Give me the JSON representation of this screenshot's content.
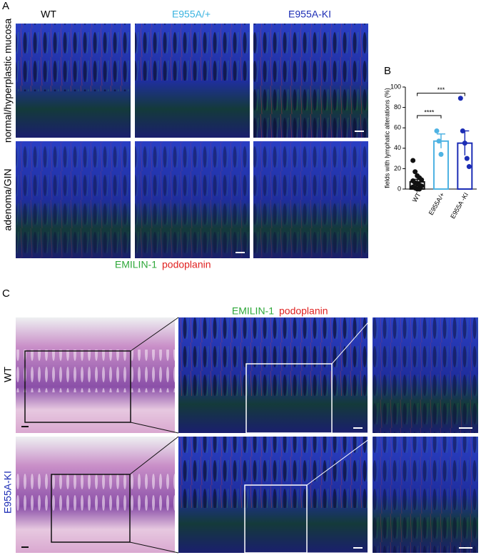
{
  "panel_a": {
    "label": "A",
    "columns": [
      "WT",
      "E955A/+",
      "E955A-KI"
    ],
    "rows": [
      "normal/hyperplastic mucosa",
      "adenoma/GIN"
    ],
    "stain_green": "EMILIN-1",
    "stain_red": "podoplanin"
  },
  "panel_b": {
    "label": "B"
  },
  "panel_c": {
    "label": "C",
    "rows": [
      "WT",
      "E955A-KI"
    ],
    "stain_green": "EMILIN-1",
    "stain_red": "podoplanin"
  },
  "chart_data": {
    "type": "bar",
    "y_label": "fields with lymphatic alterations (%)",
    "categories": [
      "WT",
      "E955A/+",
      "E955A -KI"
    ],
    "values": [
      7,
      47,
      45
    ],
    "errors": [
      2.5,
      7,
      12
    ],
    "points": [
      [
        28,
        17,
        13,
        11,
        9,
        8,
        6,
        5,
        4,
        3,
        2,
        1,
        0,
        0
      ],
      [
        57,
        47,
        34
      ],
      [
        89,
        57,
        45,
        30,
        22
      ]
    ],
    "colors": [
      "#111111",
      "#4fb3e3",
      "#1c2db5"
    ],
    "ylim": [
      0,
      100
    ],
    "yticks": [
      0,
      20,
      40,
      60,
      80,
      100
    ],
    "annotations": [
      "****",
      "***"
    ]
  }
}
